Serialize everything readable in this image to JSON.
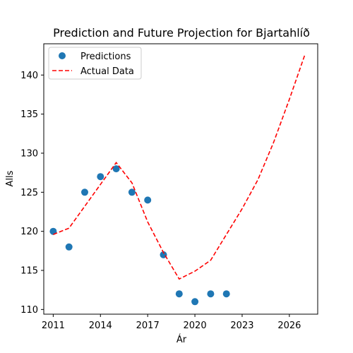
{
  "chart_data": {
    "type": "scatter",
    "title": "Prediction and Future Projection for Bjartahlíð",
    "xlabel": "Ár",
    "ylabel": "Alls",
    "xlim": [
      2010.4,
      2027.8
    ],
    "ylim": [
      109.4,
      144.0
    ],
    "xticks": [
      2011,
      2014,
      2017,
      2020,
      2023,
      2026
    ],
    "yticks": [
      110,
      115,
      120,
      125,
      130,
      135,
      140
    ],
    "grid": false,
    "legend_position": "top-left",
    "series": [
      {
        "name": "Predictions",
        "kind": "scatter",
        "color": "#1f77b4",
        "x": [
          2011,
          2012,
          2013,
          2014,
          2015,
          2016,
          2017,
          2018,
          2019,
          2020,
          2021,
          2022
        ],
        "y": [
          120,
          118,
          125,
          127,
          128,
          125,
          124,
          117,
          112,
          111,
          112,
          112
        ]
      },
      {
        "name": "Actual Data",
        "kind": "line",
        "style": "dashed",
        "color": "#ff0000",
        "x": [
          2011,
          2012,
          2013,
          2014,
          2015,
          2016,
          2017,
          2018,
          2019,
          2020,
          2021,
          2022,
          2023,
          2024,
          2025,
          2026,
          2027
        ],
        "y": [
          119.6,
          120.4,
          123.2,
          126.0,
          128.8,
          126.2,
          121.2,
          117.3,
          113.9,
          114.9,
          116.3,
          119.6,
          122.9,
          126.6,
          131.4,
          136.9,
          142.7
        ]
      }
    ]
  }
}
